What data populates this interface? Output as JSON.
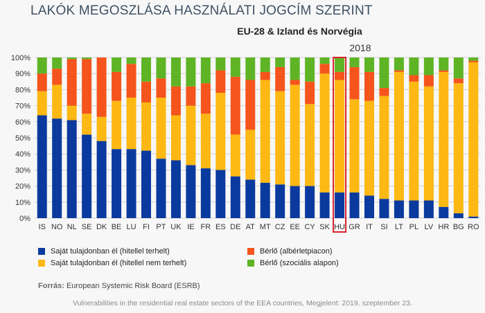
{
  "title": "LAKÓK MEGOSZLÁSA HASZNÁLATI JOGCÍM SZERINT",
  "subtitle": "EU-28 & Izland és Norvégia",
  "highlight_label": "2018",
  "highlight_category": "HU",
  "source_label": "Forrás:",
  "source_text": " European Systemic Risk Board (ESRB)",
  "footer": "Vulnerabilities in the residential real estate sectors of the EEA countries, Megjelent: 2019. szeptember 23.",
  "highlight_color": "#d8232a",
  "chart_data": {
    "type": "bar",
    "stacked": true,
    "categories": [
      "IS",
      "NO",
      "NL",
      "SE",
      "DK",
      "BE",
      "LU",
      "FI",
      "PT",
      "UK",
      "IE",
      "FR",
      "ES",
      "DE",
      "AT",
      "MT",
      "CZ",
      "EE",
      "CY",
      "SK",
      "HU",
      "GR",
      "IT",
      "SI",
      "LT",
      "PL",
      "LV",
      "HR",
      "BG",
      "RO"
    ],
    "y_ticks": [
      "0%",
      "10%",
      "20%",
      "30%",
      "40%",
      "50%",
      "60%",
      "70%",
      "80%",
      "90%",
      "100%"
    ],
    "ylim": [
      0,
      100
    ],
    "series": [
      {
        "name": "Saját tulajdonban él (hitellel terhelt)",
        "color": "#0b3a9e",
        "values": [
          64,
          62,
          61,
          52,
          48,
          43,
          43,
          42,
          37,
          36,
          33,
          31,
          30,
          26,
          24,
          22,
          21,
          20,
          20,
          16,
          16,
          16,
          14,
          12,
          11,
          11,
          11,
          7,
          3,
          1
        ]
      },
      {
        "name": "Saját tulajdonban él (hitellel nem terhelt)",
        "color": "#fdb813",
        "values": [
          15,
          21,
          9,
          13,
          15,
          30,
          32,
          30,
          38,
          28,
          37,
          34,
          48,
          26,
          31,
          64,
          58,
          63,
          51,
          74,
          70,
          58,
          59,
          64,
          80,
          74,
          71,
          84,
          81,
          96
        ]
      },
      {
        "name": "Bérlő (albérletpiacon)",
        "color": "#f5541c",
        "values": [
          11,
          10,
          29,
          34,
          37,
          18,
          21,
          13,
          12,
          18,
          12,
          19,
          14,
          36,
          31,
          5,
          15,
          3,
          14,
          6,
          5,
          20,
          18,
          5,
          1,
          4,
          7,
          1,
          3,
          1
        ]
      },
      {
        "name": "Bérlő (szociális alapon)",
        "color": "#5fb425",
        "values": [
          10,
          7,
          1,
          1,
          0,
          9,
          4,
          15,
          13,
          18,
          18,
          16,
          8,
          12,
          14,
          9,
          6,
          14,
          15,
          4,
          9,
          6,
          9,
          19,
          8,
          11,
          11,
          8,
          13,
          2
        ]
      }
    ]
  }
}
